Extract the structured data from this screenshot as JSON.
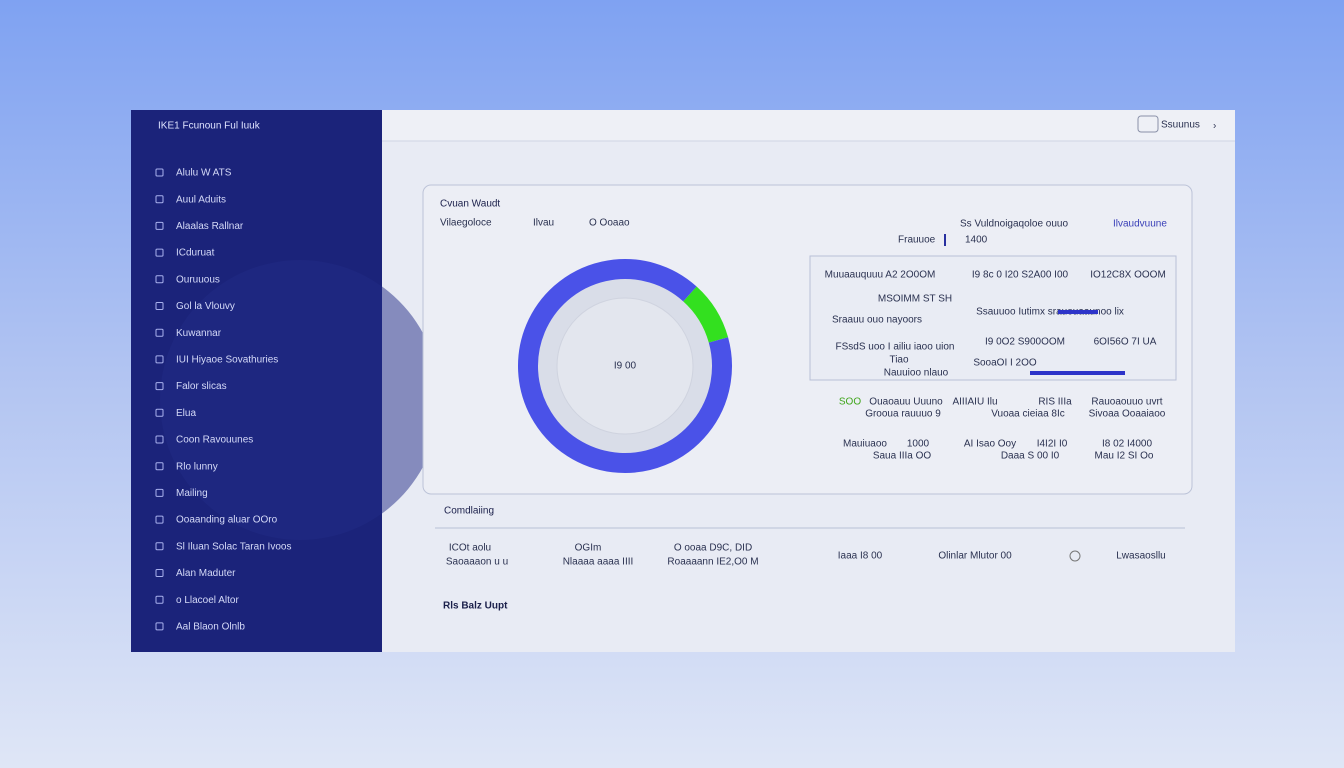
{
  "header": {
    "logo": "IKE1 Fcunoun Ful Iuuk",
    "user": "Ssuunus"
  },
  "sidebar": {
    "items": [
      "Alulu W ATS",
      "Auul Aduits",
      "Alaalas Rallnar",
      "ICduruat",
      "Ouruuous",
      "Gol la Vlouvy",
      "Kuwannar",
      "IUI Hiyaoe Sovathuries",
      "Falor slicas",
      "Elua",
      "Coon Ravouunes",
      "Rlo lunny",
      "Mailing",
      "Ooaanding aluar OOro",
      "Sl Iluan Solac Taran Ivoos",
      "Alan Maduter",
      "o Llacoel Altor",
      "Aal Blaon Olnlb"
    ]
  },
  "card": {
    "title": "Cvuan Waudt",
    "subtitle": "Vilaegoloce",
    "legend": [
      "Ilvau",
      "O Ooaao"
    ],
    "right_labels": [
      "Ss Vuldnoigaqoloe ouuo",
      "Ilvaudvuune"
    ],
    "filter": "Frauuoe",
    "filter_value": "1400"
  },
  "donut": {
    "center_label": "I9 00",
    "values": [
      9,
      91
    ],
    "colors": [
      "#33e01f",
      "#4a52e8"
    ]
  },
  "stats": {
    "box_texts": [
      "Muuaauquuu A2 2O0OM",
      "I9 8c 0 I20 S2A00 I00",
      "IO12C8X OOOM",
      "MSOIMM ST SH",
      "Ssauuoo Iutimx srauouaaunoo lix",
      "Sraauu ouo nayoors",
      "FSsdS uoo I ailiu iaoo uion",
      "I9 0O2 S900OOM",
      "6OI56O 7I UA",
      "Tiao",
      "SooaOI I 2OO",
      "Nauuioo nlauo"
    ],
    "below_texts": [
      "SOO",
      "Ouaoauu Uuuno",
      "AIIIAIU Ilu",
      "RIS IIIa",
      "Rauoaouuo uvrt",
      "Grooua rauuuo 9",
      "Vuoaa cieiaa 8Ic",
      "Sivoaa Ooaaiaoo",
      "Mauiuaoo",
      "1000",
      "AI Isao Ooy",
      "I4I2I I0",
      "I8 02 I4000",
      "Saua IIIa OO",
      "Daaa S 00 I0",
      "Mau I2 SI Oo"
    ]
  },
  "completion": {
    "title": "Comdlaiing",
    "cells": [
      "ICOt aolu",
      "Saoaaaon u u",
      "OGIm",
      "Nlaaaa aaaa IIII",
      "O ooaa D9C, DID",
      "Roaaaann IE2,O0 M",
      "Iaaa I8 00",
      "Olinlar Mlutor 00",
      "Lwasaosllu"
    ],
    "footer": "Rls Balz Uupt"
  }
}
